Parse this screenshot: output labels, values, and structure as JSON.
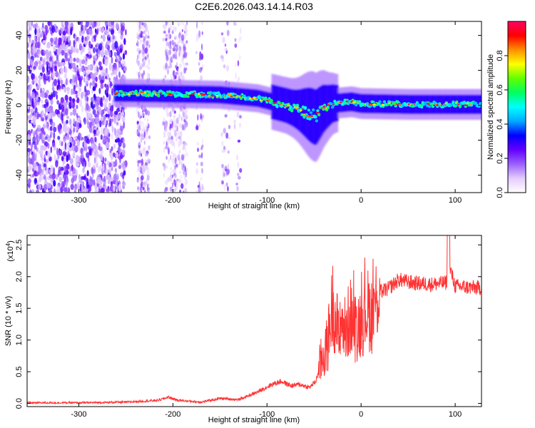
{
  "chart_data": [
    {
      "type": "heatmap",
      "title": "C2E6.2026.043.14.14.R03",
      "xlabel": "Height of straight line (km)",
      "ylabel": "Frequency (Hz)",
      "xlim": [
        -355,
        128
      ],
      "ylim": [
        -50,
        48
      ],
      "xticks": [
        -300,
        -200,
        -100,
        0,
        100
      ],
      "xtick_labels": [
        "-300",
        "-200",
        "-100",
        "0",
        "100"
      ],
      "yticks": [
        -40,
        -20,
        0,
        20,
        40
      ],
      "ytick_labels": [
        "-40",
        "-20",
        "0",
        "20",
        "40"
      ],
      "colorbar": {
        "label": "Normalized spectral amplitude",
        "range": [
          0,
          1
        ],
        "ticks": [
          0.0,
          0.2,
          0.4,
          0.6,
          0.8
        ],
        "tick_labels": [
          "0.0",
          "0.2",
          "0.4",
          "0.6",
          "0.8"
        ],
        "colors": [
          "#ffffff",
          "#e4ccff",
          "#9a60ff",
          "#6400ff",
          "#0000ff",
          "#00aaff",
          "#00ffff",
          "#00ff60",
          "#60ff00",
          "#ffff00",
          "#ff9000",
          "#ff0000",
          "#ff0066"
        ]
      },
      "ridge_center_hz": [
        {
          "x": -255,
          "y": 7
        },
        {
          "x": -200,
          "y": 6.5
        },
        {
          "x": -150,
          "y": 6
        },
        {
          "x": -110,
          "y": 4
        },
        {
          "x": -80,
          "y": 0
        },
        {
          "x": -60,
          "y": -4
        },
        {
          "x": -48,
          "y": -7
        },
        {
          "x": -40,
          "y": -2
        },
        {
          "x": -30,
          "y": 1
        },
        {
          "x": -10,
          "y": 2
        },
        {
          "x": 0,
          "y": 1
        },
        {
          "x": 50,
          "y": 0.5
        },
        {
          "x": 128,
          "y": 0.5
        }
      ]
    },
    {
      "type": "line",
      "title": "",
      "xlabel": "Height of straight line (km)",
      "ylabel": "SNR (10 * v/v)",
      "y_scale_label": "(x10",
      "y_scale_exponent": "4",
      "xlim": [
        -355,
        128
      ],
      "ylim": [
        -0.05,
        2.65
      ],
      "xticks": [
        -300,
        -200,
        -100,
        0,
        100
      ],
      "xtick_labels": [
        "-300",
        "-200",
        "-100",
        "0",
        "100"
      ],
      "yticks": [
        0.0,
        0.5,
        1.0,
        1.5,
        2.0,
        2.5
      ],
      "ytick_labels": [
        "0.0",
        "0.5",
        "1.0",
        "1.5",
        "2.0",
        "2.5"
      ],
      "line_color": "#ff3333",
      "series": [
        {
          "name": "SNR",
          "points": [
            {
              "x": -355,
              "y": 0.01
            },
            {
              "x": -300,
              "y": 0.01
            },
            {
              "x": -250,
              "y": 0.02
            },
            {
              "x": -215,
              "y": 0.05
            },
            {
              "x": -205,
              "y": 0.1
            },
            {
              "x": -195,
              "y": 0.05
            },
            {
              "x": -170,
              "y": 0.02
            },
            {
              "x": -150,
              "y": 0.08
            },
            {
              "x": -130,
              "y": 0.06
            },
            {
              "x": -110,
              "y": 0.18
            },
            {
              "x": -95,
              "y": 0.3
            },
            {
              "x": -85,
              "y": 0.35
            },
            {
              "x": -75,
              "y": 0.28
            },
            {
              "x": -65,
              "y": 0.3
            },
            {
              "x": -55,
              "y": 0.25
            },
            {
              "x": -48,
              "y": 0.35
            },
            {
              "x": -42,
              "y": 0.7
            },
            {
              "x": -36,
              "y": 0.9
            },
            {
              "x": -30,
              "y": 1.6
            },
            {
              "x": -26,
              "y": 1.2
            },
            {
              "x": -20,
              "y": 1.3
            },
            {
              "x": -16,
              "y": 1.1
            },
            {
              "x": -12,
              "y": 1.4
            },
            {
              "x": -6,
              "y": 1.2
            },
            {
              "x": 0,
              "y": 1.3
            },
            {
              "x": 6,
              "y": 1.5
            },
            {
              "x": 12,
              "y": 1.4
            },
            {
              "x": 18,
              "y": 1.75
            },
            {
              "x": 28,
              "y": 1.8
            },
            {
              "x": 40,
              "y": 1.95
            },
            {
              "x": 55,
              "y": 1.9
            },
            {
              "x": 75,
              "y": 1.88
            },
            {
              "x": 90,
              "y": 1.9
            },
            {
              "x": 95,
              "y": 2.1
            },
            {
              "x": 100,
              "y": 1.85
            },
            {
              "x": 115,
              "y": 1.83
            },
            {
              "x": 128,
              "y": 1.82
            }
          ]
        }
      ]
    }
  ]
}
